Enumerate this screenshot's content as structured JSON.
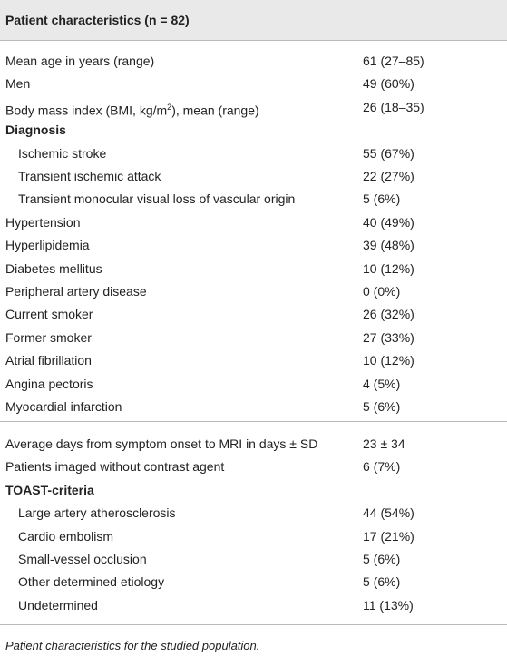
{
  "table": {
    "title": "Patient characteristics (n = 82)",
    "sections": [
      {
        "rows": [
          {
            "label": "Mean age in years (range)",
            "value": "61 (27–85)"
          },
          {
            "label": "Men",
            "value": "49 (60%)"
          },
          {
            "label_parts": [
              "Body mass index (BMI, kg/m",
              "2",
              "), mean (range)"
            ],
            "value": "26 (18–35)"
          },
          {
            "label": "Diagnosis",
            "bold": true
          },
          {
            "label": "Ischemic stroke",
            "value": "55 (67%)",
            "indent": true
          },
          {
            "label": "Transient ischemic attack",
            "value": "22 (27%)",
            "indent": true
          },
          {
            "label": "Transient monocular visual loss of vascular origin",
            "value": "5 (6%)",
            "indent": true
          },
          {
            "label": "Hypertension",
            "value": "40 (49%)"
          },
          {
            "label": "Hyperlipidemia",
            "value": "39 (48%)"
          },
          {
            "label": "Diabetes mellitus",
            "value": "10 (12%)"
          },
          {
            "label": "Peripheral artery disease",
            "value": "0 (0%)"
          },
          {
            "label": "Current smoker",
            "value": "26 (32%)"
          },
          {
            "label": "Former smoker",
            "value": "27 (33%)"
          },
          {
            "label": "Atrial fibrillation",
            "value": "10 (12%)"
          },
          {
            "label": "Angina pectoris",
            "value": "4 (5%)"
          },
          {
            "label": "Myocardial infarction",
            "value": "5 (6%)"
          }
        ]
      },
      {
        "rows": [
          {
            "label": "Average days from symptom onset to MRI in days ± SD",
            "value": "23 ± 34"
          },
          {
            "label": "Patients imaged without contrast agent",
            "value": "6 (7%)"
          },
          {
            "label": "TOAST-criteria",
            "bold": true
          },
          {
            "label": "Large artery atherosclerosis",
            "value": "44 (54%)",
            "indent": true
          },
          {
            "label": "Cardio embolism",
            "value": "17 (21%)",
            "indent": true
          },
          {
            "label": "Small-vessel occlusion",
            "value": "5 (6%)",
            "indent": true
          },
          {
            "label": "Other determined etiology",
            "value": "5 (6%)",
            "indent": true
          },
          {
            "label": "Undetermined",
            "value": "11 (13%)",
            "indent": true
          }
        ]
      }
    ],
    "caption": "Patient characteristics for the studied population."
  }
}
